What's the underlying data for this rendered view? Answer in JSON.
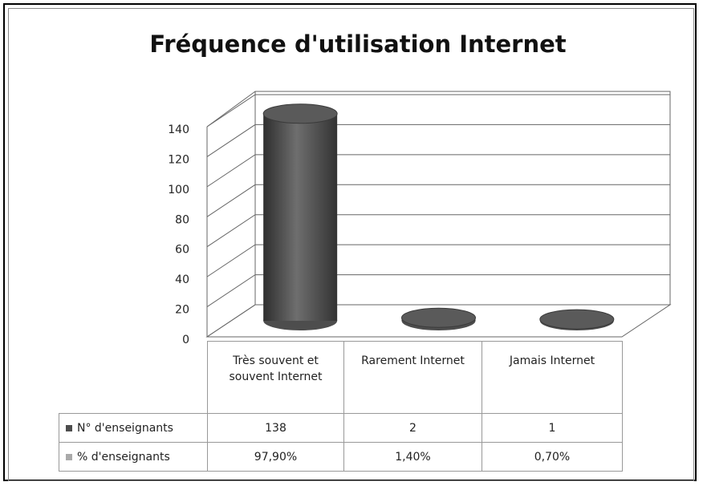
{
  "chart_data": {
    "type": "cylinder",
    "title": "Fréquence d'utilisation Internet",
    "categories": [
      "Très souvent et souvent Internet",
      "Rarement Internet",
      "Jamais Internet"
    ],
    "series": [
      {
        "name": "N° d'enseignants",
        "color": "#4d4d4d",
        "values": [
          138,
          2,
          1
        ]
      },
      {
        "name": "% d'enseignants",
        "color": "#aaaaaa",
        "values": [
          97.9,
          1.4,
          0.7
        ],
        "value_labels": [
          "97,90%",
          "1,40%",
          "0,70%"
        ]
      }
    ],
    "ylim": [
      0,
      140
    ],
    "yticks": [
      0,
      20,
      40,
      60,
      80,
      100,
      120,
      140
    ],
    "grid": true
  }
}
